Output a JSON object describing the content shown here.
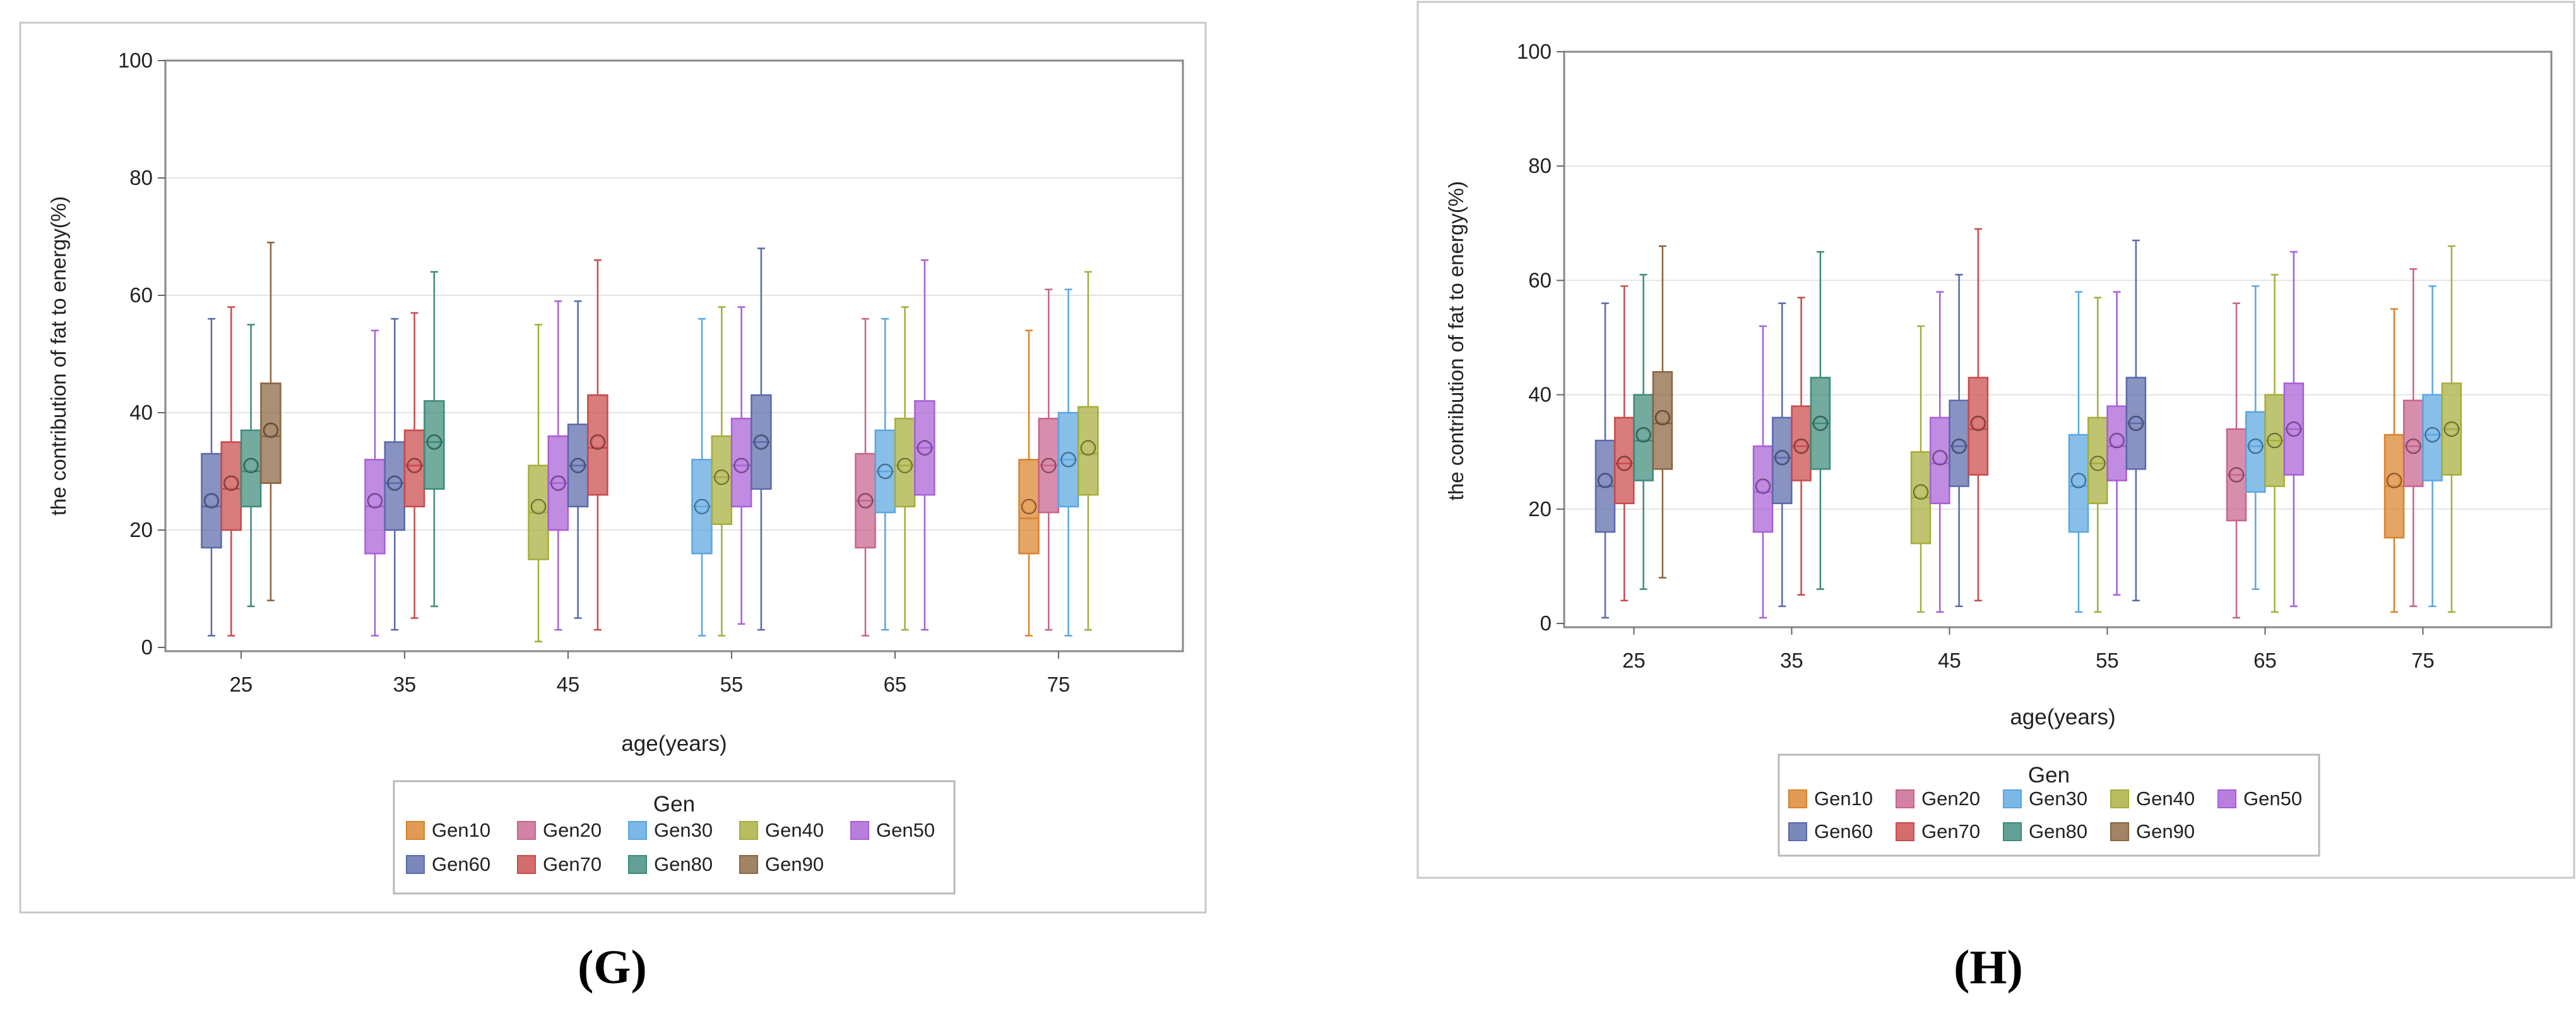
{
  "chart_data": [
    {
      "type": "boxplot",
      "panel_label": "(G)",
      "title": "",
      "xlabel": "age(years)",
      "ylabel": "the contribution of fat to energy(%)",
      "ylim": [
        0,
        100
      ],
      "yticks": [
        0,
        20,
        40,
        60,
        80,
        100
      ],
      "grid": true,
      "legend_title": "Gen",
      "legend_position": "bottom",
      "categories": [
        "25",
        "35",
        "45",
        "55",
        "65",
        "75"
      ],
      "series": [
        {
          "name": "Gen10",
          "color": "#d9822b",
          "boxes": [
            null,
            null,
            null,
            null,
            null,
            {
              "min": 2,
              "q1": 16,
              "median": 22,
              "mean": 24,
              "q3": 32,
              "max": 54
            }
          ]
        },
        {
          "name": "Gen20",
          "color": "#c8638c",
          "boxes": [
            null,
            null,
            null,
            null,
            {
              "min": 2,
              "q1": 17,
              "median": 25,
              "mean": 25,
              "q3": 33,
              "max": 56
            },
            {
              "min": 3,
              "q1": 23,
              "median": 31,
              "mean": 31,
              "q3": 39,
              "max": 61
            }
          ]
        },
        {
          "name": "Gen30",
          "color": "#5aa6e0",
          "boxes": [
            null,
            null,
            null,
            {
              "min": 2,
              "q1": 16,
              "median": 24,
              "mean": 24,
              "q3": 32,
              "max": 56
            },
            {
              "min": 3,
              "q1": 23,
              "median": 30,
              "mean": 30,
              "q3": 37,
              "max": 56
            },
            {
              "min": 2,
              "q1": 24,
              "median": 32,
              "mean": 32,
              "q3": 40,
              "max": 61
            }
          ]
        },
        {
          "name": "Gen40",
          "color": "#a6ad3a",
          "boxes": [
            null,
            null,
            {
              "min": 1,
              "q1": 15,
              "median": 23,
              "mean": 24,
              "q3": 31,
              "max": 55
            },
            {
              "min": 2,
              "q1": 21,
              "median": 29,
              "mean": 29,
              "q3": 36,
              "max": 58
            },
            {
              "min": 3,
              "q1": 24,
              "median": 31,
              "mean": 31,
              "q3": 39,
              "max": 58
            },
            {
              "min": 3,
              "q1": 26,
              "median": 33,
              "mean": 34,
              "q3": 41,
              "max": 64
            }
          ]
        },
        {
          "name": "Gen50",
          "color": "#a85fd6",
          "boxes": [
            null,
            {
              "min": 2,
              "q1": 16,
              "median": 24,
              "mean": 25,
              "q3": 32,
              "max": 54
            },
            {
              "min": 3,
              "q1": 20,
              "median": 28,
              "mean": 28,
              "q3": 36,
              "max": 59
            },
            {
              "min": 4,
              "q1": 24,
              "median": 31,
              "mean": 31,
              "q3": 39,
              "max": 58
            },
            {
              "min": 3,
              "q1": 26,
              "median": 34,
              "mean": 34,
              "q3": 42,
              "max": 66
            },
            null
          ]
        },
        {
          "name": "Gen60",
          "color": "#5a6aaa",
          "boxes": [
            {
              "min": 2,
              "q1": 17,
              "median": 24,
              "mean": 25,
              "q3": 33,
              "max": 56
            },
            {
              "min": 3,
              "q1": 20,
              "median": 28,
              "mean": 28,
              "q3": 35,
              "max": 56
            },
            {
              "min": 5,
              "q1": 24,
              "median": 31,
              "mean": 31,
              "q3": 38,
              "max": 59
            },
            {
              "min": 3,
              "q1": 27,
              "median": 35,
              "mean": 35,
              "q3": 43,
              "max": 68
            },
            null,
            null
          ]
        },
        {
          "name": "Gen70",
          "color": "#c94a4a",
          "boxes": [
            {
              "min": 2,
              "q1": 20,
              "median": 27,
              "mean": 28,
              "q3": 35,
              "max": 58
            },
            {
              "min": 5,
              "q1": 24,
              "median": 31,
              "mean": 31,
              "q3": 37,
              "max": 57
            },
            {
              "min": 3,
              "q1": 26,
              "median": 34,
              "mean": 35,
              "q3": 43,
              "max": 66
            },
            null,
            null,
            null
          ]
        },
        {
          "name": "Gen80",
          "color": "#3d8a7a",
          "boxes": [
            {
              "min": 7,
              "q1": 24,
              "median": 30,
              "mean": 31,
              "q3": 37,
              "max": 55
            },
            {
              "min": 7,
              "q1": 27,
              "median": 35,
              "mean": 35,
              "q3": 42,
              "max": 64
            },
            null,
            null,
            null,
            null
          ]
        },
        {
          "name": "Gen90",
          "color": "#8a6440",
          "boxes": [
            {
              "min": 8,
              "q1": 28,
              "median": 36,
              "mean": 37,
              "q3": 45,
              "max": 69
            },
            null,
            null,
            null,
            null,
            null
          ]
        }
      ]
    },
    {
      "type": "boxplot",
      "panel_label": "(H)",
      "title": "",
      "xlabel": "age(years)",
      "ylabel": "the contribution of fat to energy(%)",
      "ylim": [
        0,
        100
      ],
      "yticks": [
        0,
        20,
        40,
        60,
        80,
        100
      ],
      "grid": true,
      "legend_title": "Gen",
      "legend_position": "bottom",
      "categories": [
        "25",
        "35",
        "45",
        "55",
        "65",
        "75"
      ],
      "series": [
        {
          "name": "Gen10",
          "color": "#d9822b",
          "boxes": [
            null,
            null,
            null,
            null,
            null,
            {
              "min": 2,
              "q1": 15,
              "median": 24,
              "mean": 25,
              "q3": 33,
              "max": 55
            }
          ]
        },
        {
          "name": "Gen20",
          "color": "#c8638c",
          "boxes": [
            null,
            null,
            null,
            null,
            {
              "min": 1,
              "q1": 18,
              "median": 26,
              "mean": 26,
              "q3": 34,
              "max": 56
            },
            {
              "min": 3,
              "q1": 24,
              "median": 31,
              "mean": 31,
              "q3": 39,
              "max": 62
            }
          ]
        },
        {
          "name": "Gen30",
          "color": "#5aa6e0",
          "boxes": [
            null,
            null,
            null,
            {
              "min": 2,
              "q1": 16,
              "median": 24,
              "mean": 25,
              "q3": 33,
              "max": 58
            },
            {
              "min": 6,
              "q1": 23,
              "median": 31,
              "mean": 31,
              "q3": 37,
              "max": 59
            },
            {
              "min": 3,
              "q1": 25,
              "median": 33,
              "mean": 33,
              "q3": 40,
              "max": 59
            }
          ]
        },
        {
          "name": "Gen40",
          "color": "#a6ad3a",
          "boxes": [
            null,
            null,
            {
              "min": 2,
              "q1": 14,
              "median": 22,
              "mean": 23,
              "q3": 30,
              "max": 52
            },
            {
              "min": 2,
              "q1": 21,
              "median": 28,
              "mean": 28,
              "q3": 36,
              "max": 57
            },
            {
              "min": 2,
              "q1": 24,
              "median": 32,
              "mean": 32,
              "q3": 40,
              "max": 61
            },
            {
              "min": 2,
              "q1": 26,
              "median": 34,
              "mean": 34,
              "q3": 42,
              "max": 66
            }
          ]
        },
        {
          "name": "Gen50",
          "color": "#a85fd6",
          "boxes": [
            null,
            {
              "min": 1,
              "q1": 16,
              "median": 23,
              "mean": 24,
              "q3": 31,
              "max": 52
            },
            {
              "min": 2,
              "q1": 21,
              "median": 28,
              "mean": 29,
              "q3": 36,
              "max": 58
            },
            {
              "min": 5,
              "q1": 25,
              "median": 31,
              "mean": 32,
              "q3": 38,
              "max": 58
            },
            {
              "min": 3,
              "q1": 26,
              "median": 34,
              "mean": 34,
              "q3": 42,
              "max": 65
            },
            null
          ]
        },
        {
          "name": "Gen60",
          "color": "#5a6aaa",
          "boxes": [
            {
              "min": 1,
              "q1": 16,
              "median": 24,
              "mean": 25,
              "q3": 32,
              "max": 56
            },
            {
              "min": 3,
              "q1": 21,
              "median": 29,
              "mean": 29,
              "q3": 36,
              "max": 56
            },
            {
              "min": 3,
              "q1": 24,
              "median": 31,
              "mean": 31,
              "q3": 39,
              "max": 61
            },
            {
              "min": 4,
              "q1": 27,
              "median": 35,
              "mean": 35,
              "q3": 43,
              "max": 67
            },
            null,
            null
          ]
        },
        {
          "name": "Gen70",
          "color": "#c94a4a",
          "boxes": [
            {
              "min": 4,
              "q1": 21,
              "median": 28,
              "mean": 28,
              "q3": 36,
              "max": 59
            },
            {
              "min": 5,
              "q1": 25,
              "median": 31,
              "mean": 31,
              "q3": 38,
              "max": 57
            },
            {
              "min": 4,
              "q1": 26,
              "median": 34,
              "mean": 35,
              "q3": 43,
              "max": 69
            },
            null,
            null,
            null
          ]
        },
        {
          "name": "Gen80",
          "color": "#3d8a7a",
          "boxes": [
            {
              "min": 6,
              "q1": 25,
              "median": 32,
              "mean": 33,
              "q3": 40,
              "max": 61
            },
            {
              "min": 6,
              "q1": 27,
              "median": 35,
              "mean": 35,
              "q3": 43,
              "max": 65
            },
            null,
            null,
            null,
            null
          ]
        },
        {
          "name": "Gen90",
          "color": "#8a6440",
          "boxes": [
            {
              "min": 8,
              "q1": 27,
              "median": 35,
              "mean": 36,
              "q3": 44,
              "max": 66
            },
            null,
            null,
            null,
            null,
            null
          ]
        }
      ]
    }
  ]
}
